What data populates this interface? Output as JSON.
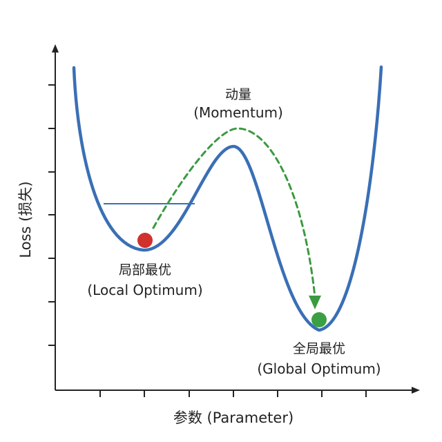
{
  "axes": {
    "y_label": "Loss (损失)",
    "x_label": "参数 (Parameter)"
  },
  "annotations": {
    "momentum_line1": "动量",
    "momentum_line2": "(Momentum)",
    "local_line1": "局部最优",
    "local_line2": "(Local Optimum)",
    "global_line1": "全局最优",
    "global_line2": "(Global Optimum)"
  },
  "colors": {
    "curve": "#3a6fb5",
    "local_ball": "#d0312d",
    "global_ball": "#3aa043",
    "momentum_arrow": "#3a9a3f",
    "axis": "#222222"
  }
}
